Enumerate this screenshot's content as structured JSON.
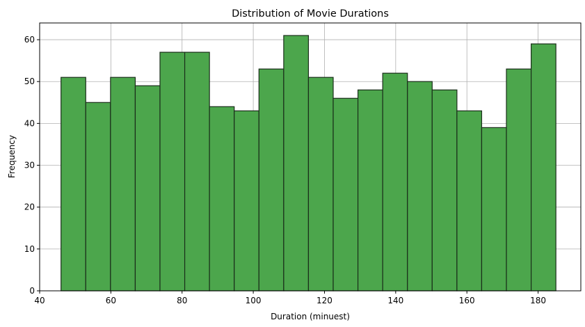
{
  "chart_data": {
    "type": "bar",
    "title": "Distribution of Movie Durations",
    "xlabel": "Duration (minuest)",
    "ylabel": "Frequency",
    "bin_edges": [
      46.0,
      52.95,
      59.9,
      66.85,
      73.8,
      80.75,
      87.7,
      94.65,
      101.6,
      108.55,
      115.5,
      122.45,
      129.4,
      136.35,
      143.3,
      150.25,
      157.2,
      164.15,
      171.1,
      178.05,
      185.0
    ],
    "values": [
      51,
      45,
      51,
      49,
      57,
      57,
      44,
      43,
      53,
      61,
      51,
      46,
      48,
      52,
      50,
      48,
      43,
      39,
      53,
      59
    ],
    "xlim": [
      40,
      192
    ],
    "ylim": [
      0,
      64
    ],
    "x_ticks": [
      40,
      60,
      80,
      100,
      120,
      140,
      160,
      180
    ],
    "y_ticks": [
      0,
      10,
      20,
      30,
      40,
      50,
      60
    ],
    "grid": true,
    "bar_color": "#4ca64c",
    "edge_color": "#1a2e1a"
  }
}
